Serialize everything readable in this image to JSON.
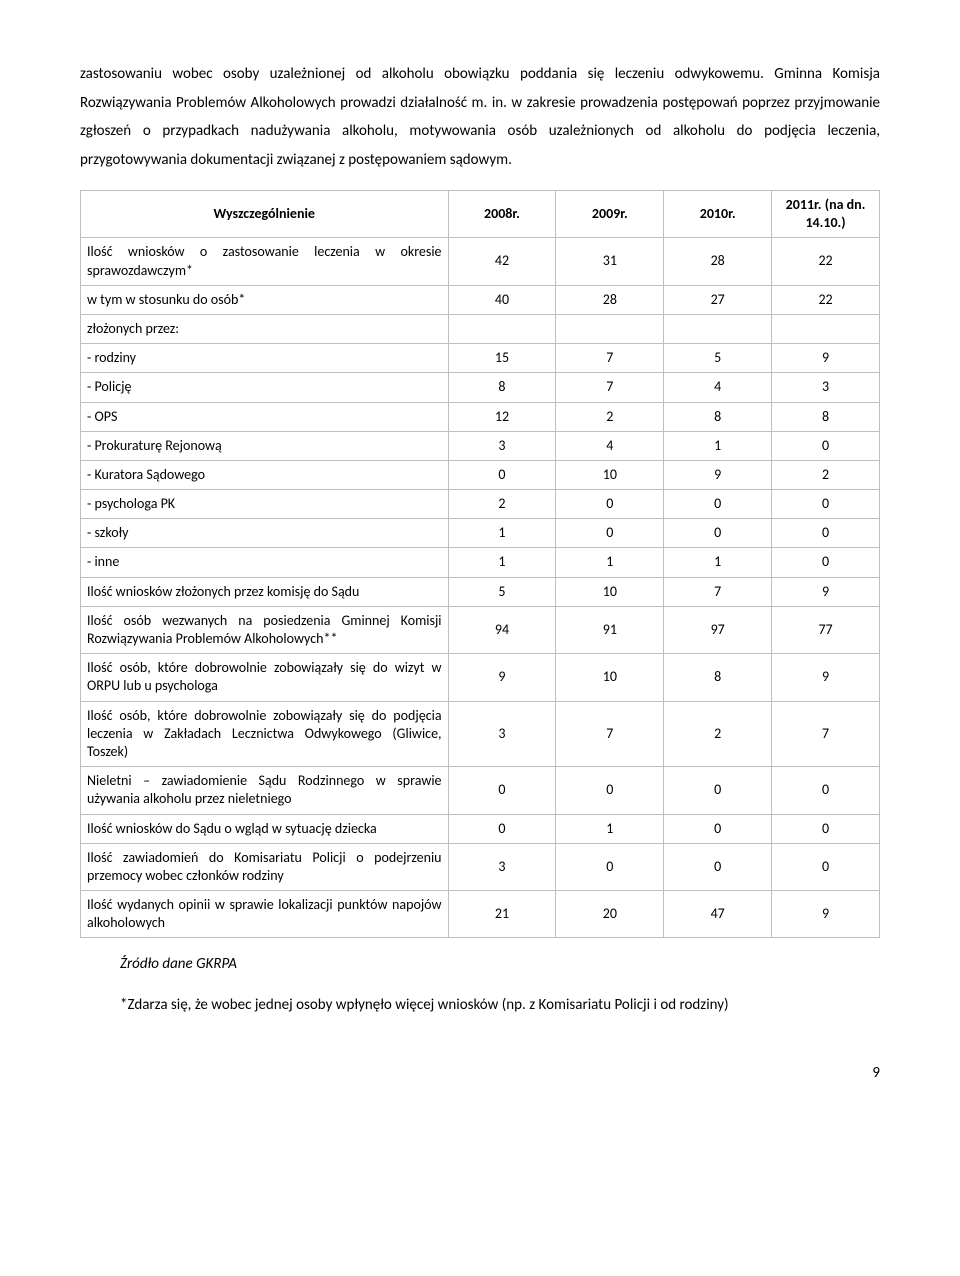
{
  "para1": "zastosowaniu wobec osoby uzależnionej od alkoholu obowiązku poddania się leczeniu odwykowemu. Gminna Komisja Rozwiązywania Problemów Alkoholowych prowadzi działalność m. in. w zakresie prowadzenia postępowań poprzez przyjmowanie zgłoszeń o przypadkach nadużywania alkoholu, motywowania osób uzależnionych od alkoholu do podjęcia leczenia, przygotowywania dokumentacji związanej z postępowaniem sądowym.",
  "table": {
    "headers": [
      "Wyszczególnienie",
      "2008r.",
      "2009r.",
      "2010r.",
      "2011r. (na dn. 14.10.)"
    ],
    "rows": [
      {
        "label": "Ilość wniosków o zastosowanie leczenia w okresie sprawozdawczym*",
        "v": [
          "42",
          "31",
          "28",
          "22"
        ],
        "justify": true
      },
      {
        "label": "w tym w stosunku do osób*",
        "v": [
          "40",
          "28",
          "27",
          "22"
        ]
      },
      {
        "label": "złożonych przez:",
        "v": [
          "",
          "",
          "",
          ""
        ]
      },
      {
        "label": "- rodziny",
        "v": [
          "15",
          "7",
          "5",
          "9"
        ]
      },
      {
        "label": "- Policję",
        "v": [
          "8",
          "7",
          "4",
          "3"
        ]
      },
      {
        "label": "- OPS",
        "v": [
          "12",
          "2",
          "8",
          "8"
        ]
      },
      {
        "label": "- Prokuraturę Rejonową",
        "v": [
          "3",
          "4",
          "1",
          "0"
        ]
      },
      {
        "label": "- Kuratora Sądowego",
        "v": [
          "0",
          "10",
          "9",
          "2"
        ]
      },
      {
        "label": "- psychologa PK",
        "v": [
          "2",
          "0",
          "0",
          "0"
        ]
      },
      {
        "label": "- szkoły",
        "v": [
          "1",
          "0",
          "0",
          "0"
        ]
      },
      {
        "label": "- inne",
        "v": [
          "1",
          "1",
          "1",
          "0"
        ]
      },
      {
        "label": "Ilość wniosków złożonych przez komisję do Sądu",
        "v": [
          "5",
          "10",
          "7",
          "9"
        ]
      },
      {
        "label": "Ilość osób wezwanych na posiedzenia Gminnej Komisji Rozwiązywania Problemów Alkoholowych**",
        "v": [
          "94",
          "91",
          "97",
          "77"
        ],
        "justify": true
      },
      {
        "label": "Ilość osób, które dobrowolnie zobowiązały się do wizyt w ORPU lub u psychologa",
        "v": [
          "9",
          "10",
          "8",
          "9"
        ],
        "justify": true
      },
      {
        "label": "Ilość osób, które dobrowolnie zobowiązały się do podjęcia leczenia w Zakładach Lecznictwa Odwykowego (Gliwice, Toszek)",
        "v": [
          "3",
          "7",
          "2",
          "7"
        ],
        "justify": true
      },
      {
        "label": "Nieletni – zawiadomienie Sądu Rodzinnego w sprawie używania alkoholu przez nieletniego",
        "v": [
          "0",
          "0",
          "0",
          "0"
        ],
        "justify": true
      },
      {
        "label": "Ilość wniosków do Sądu o wgląd w sytuację dziecka",
        "v": [
          "0",
          "1",
          "0",
          "0"
        ]
      },
      {
        "label": "Ilość zawiadomień do Komisariatu Policji o podejrzeniu przemocy wobec członków rodziny",
        "v": [
          "3",
          "0",
          "0",
          "0"
        ],
        "justify": true
      },
      {
        "label": "Ilość wydanych opinii w sprawie lokalizacji punktów napojów alkoholowych",
        "v": [
          "21",
          "20",
          "47",
          "9"
        ],
        "justify": true
      }
    ]
  },
  "source": "Źródło dane GKRPA",
  "footnote": "*Zdarza się, że wobec jednej osoby wpłynęło więcej wniosków (np. z Komisariatu Policji i od rodziny)",
  "pagenum": "9"
}
